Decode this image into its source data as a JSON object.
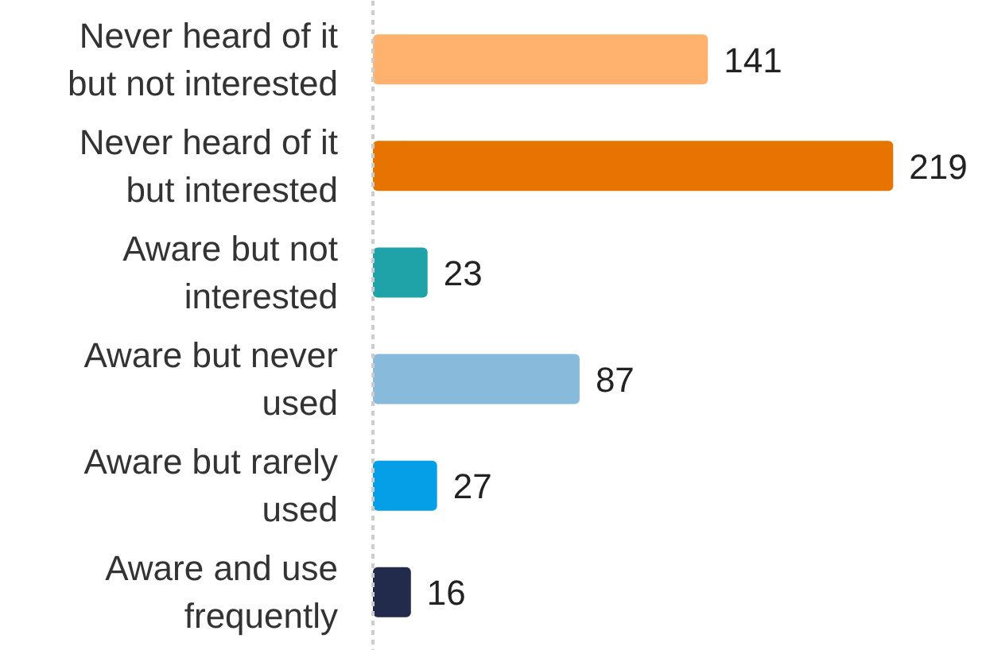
{
  "chart_data": {
    "type": "bar",
    "orientation": "horizontal",
    "categories": [
      "Never heard of it\nbut not interested",
      "Never heard of it\nbut interested",
      "Aware but not\ninterested",
      "Aware but never\nused",
      "Aware but rarely\nused",
      "Aware and use\nfrequently"
    ],
    "values": [
      141,
      219,
      23,
      87,
      27,
      16
    ],
    "colors": [
      "#ffb26e",
      "#e87400",
      "#1fa3a8",
      "#88badb",
      "#059fe8",
      "#222b4b"
    ],
    "data_labels": true,
    "tick_labels": "y",
    "grid": false
  }
}
